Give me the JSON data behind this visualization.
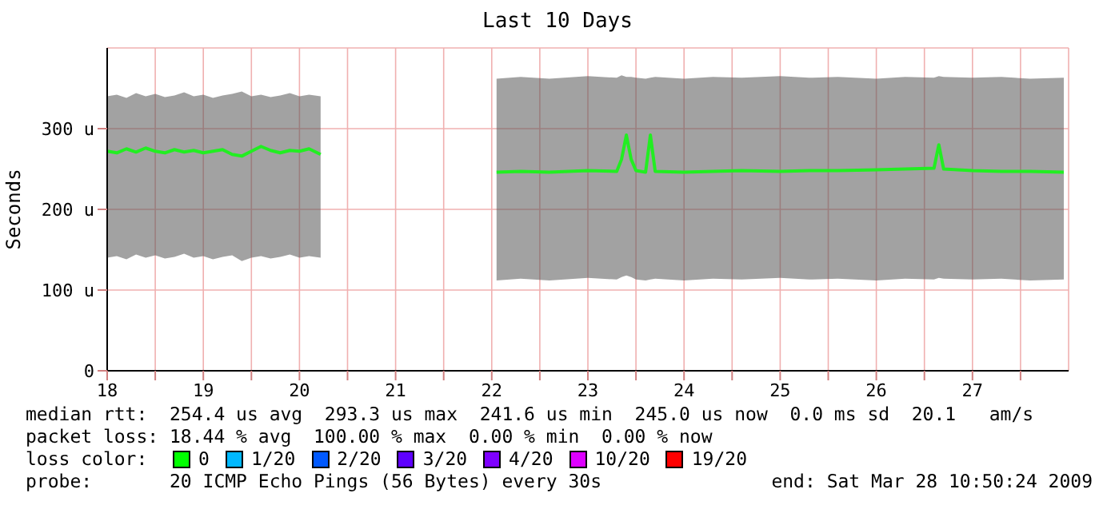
{
  "chart_data": {
    "type": "line",
    "title": "Last 10 Days",
    "ylabel": "Seconds",
    "xlim": [
      18,
      28
    ],
    "xticks": [
      18,
      {
        "value": 18.5,
        "label": null
      },
      19,
      {
        "value": 19.5,
        "label": null
      },
      20,
      {
        "value": 20.5,
        "label": null
      },
      21,
      {
        "value": 21.5,
        "label": null
      },
      22,
      {
        "value": 22.5,
        "label": null
      },
      23,
      {
        "value": 23.5,
        "label": null
      },
      24,
      {
        "value": 24.5,
        "label": null
      },
      25,
      {
        "value": 25.5,
        "label": null
      },
      26,
      {
        "value": 26.5,
        "label": null
      },
      27,
      {
        "value": 27.5,
        "label": null
      }
    ],
    "ylim": [
      0,
      400
    ],
    "yticks": [
      0,
      {
        "value": 100,
        "label": "100 u"
      },
      {
        "value": 200,
        "label": "200 u"
      },
      {
        "value": 300,
        "label": "300 u"
      }
    ],
    "grid": true,
    "legend": false,
    "marker": "none",
    "line_style": "solid",
    "series": [
      {
        "color": "#22ee22",
        "x": [
          18.0,
          18.1,
          18.2,
          18.3,
          18.4,
          18.5,
          18.6,
          18.7,
          18.8,
          18.9,
          19.0,
          19.1,
          19.2,
          19.3,
          19.4,
          19.5,
          19.6,
          19.7,
          19.8,
          19.9,
          20.0,
          20.1,
          20.22,
          21,
          22.05,
          22.3,
          22.6,
          23.0,
          23.3,
          23.35,
          23.4,
          23.45,
          23.5,
          23.6,
          23.65,
          23.7,
          24.0,
          24.3,
          24.6,
          25.0,
          25.3,
          25.6,
          26.0,
          26.3,
          26.6,
          26.65,
          26.7,
          27.0,
          27.3,
          27.6,
          27.95
        ],
        "values": [
          272,
          270,
          275,
          271,
          276,
          272,
          270,
          274,
          271,
          273,
          270,
          272,
          274,
          268,
          266,
          272,
          278,
          273,
          270,
          273,
          272,
          275,
          268,
          null,
          246,
          247,
          246,
          248,
          247,
          262,
          292,
          262,
          248,
          246,
          292,
          247,
          246,
          247,
          248,
          247,
          248,
          248,
          249,
          250,
          251,
          280,
          250,
          248,
          247,
          247,
          246
        ],
        "lower": [
          140,
          142,
          138,
          144,
          140,
          143,
          139,
          141,
          145,
          140,
          142,
          138,
          141,
          143,
          136,
          140,
          142,
          139,
          141,
          144,
          140,
          142,
          140,
          null,
          112,
          114,
          112,
          115,
          113,
          116,
          118,
          116,
          113,
          112,
          113,
          114,
          112,
          114,
          113,
          115,
          113,
          114,
          112,
          114,
          113,
          115,
          114,
          113,
          114,
          112,
          113
        ],
        "upper": [
          340,
          342,
          338,
          344,
          340,
          343,
          339,
          341,
          345,
          340,
          342,
          338,
          341,
          343,
          346,
          340,
          342,
          339,
          341,
          344,
          340,
          342,
          340,
          null,
          362,
          364,
          362,
          365,
          363,
          366,
          364,
          364,
          363,
          362,
          363,
          364,
          362,
          364,
          363,
          365,
          363,
          364,
          362,
          364,
          363,
          365,
          364,
          363,
          364,
          362,
          363
        ]
      }
    ],
    "annotations": [
      "median rtt:  254.4 us avg  293.3 us max  241.6 us min  245.0 us now  0.0 ms sd  20.1   am/s",
      "packet loss: 18.44 % avg  100.00 % max  0.00 % min  0.00 % now",
      "loss color:",
      "0",
      "1/20",
      "2/20",
      "3/20",
      "4/20",
      "10/20",
      "19/20",
      "probe:       20 ICMP Echo Pings (56 Bytes) every 30s",
      "end: Sat Mar 28 10:50:24 2009"
    ]
  }
}
